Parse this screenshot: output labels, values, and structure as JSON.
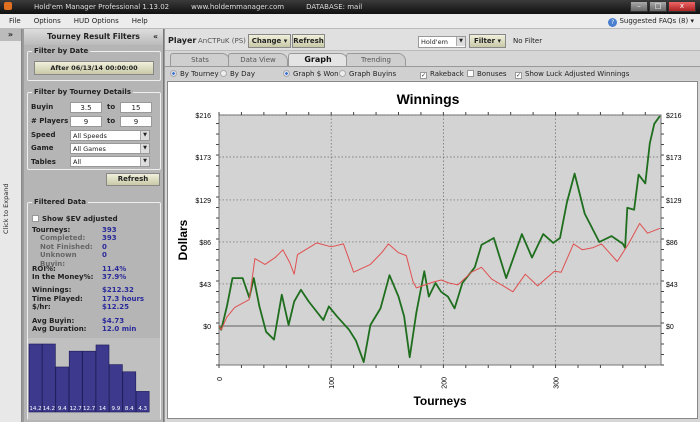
{
  "window": {
    "title": "Hold'em Manager Professional 1.13.02",
    "site": "www.holdemmanager.com",
    "database": "DATABASE: mail",
    "buttons": {
      "min": "–",
      "max": "□",
      "close": "x"
    }
  },
  "menu": {
    "items": [
      "File",
      "Options",
      "HUD Options",
      "Help"
    ],
    "faq": "Suggested FAQs (8)"
  },
  "strip": {
    "arrow": "»",
    "expand": "Click to Expand"
  },
  "filters": {
    "title": "Tourney Result Filters",
    "collapse": "«",
    "by_date": {
      "title": "Filter by Date",
      "button": "After 06/13/14 00:00:00"
    },
    "details": {
      "title": "Filter by Tourney Details",
      "buyin_label": "Buyin",
      "buyin_from": "3.5",
      "buyin_to": "15",
      "to": "to",
      "players_label": "# Players",
      "players_from": "9",
      "players_to": "9",
      "speed_label": "Speed",
      "speed": "All Speeds",
      "game_label": "Game",
      "game": "All Games",
      "tables_label": "Tables",
      "tables": "All"
    },
    "refresh": "Refresh",
    "filtered": {
      "title": "Filtered Data",
      "ev_label": "Show $EV adjusted",
      "ev_checked": false,
      "stats": [
        {
          "label": "Tourneys:",
          "value": "393",
          "sub": false
        },
        {
          "label": "Completed:",
          "value": "393",
          "sub": true
        },
        {
          "label": "Not Finished:",
          "value": "0",
          "sub": true
        },
        {
          "label": "Unknown Buyin:",
          "value": "0",
          "sub": true
        },
        {
          "label": "ROI%:",
          "value": "11.4%",
          "sub": false
        },
        {
          "label": "In the Money%:",
          "value": "37.9%",
          "sub": false
        },
        {
          "label": "Winnings:",
          "value": "$212.32",
          "sub": false
        },
        {
          "label": "Time Played:",
          "value": "17.3 hours",
          "sub": false
        },
        {
          "label": "$/hr:",
          "value": "$12.25",
          "sub": false
        },
        {
          "label": "Avg Buyin:",
          "value": "$4.73",
          "sub": false
        },
        {
          "label": "Avg Duration:",
          "value": "12.0 min",
          "sub": false
        }
      ],
      "histogram": [
        14.2,
        14.2,
        9.4,
        12.7,
        12.7,
        14.0,
        9.9,
        8.4,
        4.3
      ],
      "histogram_color": "#3d3a8e"
    }
  },
  "toolbar": {
    "player_label": "Player",
    "player": "AnCTPuK (PS)",
    "change": "Change",
    "refresh": "Refresh",
    "game": "Hold'em",
    "filter": "Filter",
    "filter_status": "No Filter"
  },
  "tabs": [
    {
      "label": "Stats",
      "active": false
    },
    {
      "label": "Data View",
      "active": false
    },
    {
      "label": "Graph",
      "active": true
    },
    {
      "label": "Trending",
      "active": false
    }
  ],
  "options": {
    "by_tourney": "By Tourney",
    "by_day": "By Day",
    "graph_won": "Graph $ Won",
    "graph_buyins": "Graph Buyins",
    "rakeback": "Rakeback",
    "bonuses": "Bonuses",
    "luck": "Show Luck Adjusted Winnings",
    "rakeback_checked": true,
    "bonuses_checked": false,
    "luck_checked": true,
    "check": "✓"
  },
  "chart_data": {
    "type": "line",
    "title": "Winnings",
    "xlabel": "Tourneys",
    "ylabel": "Dollars",
    "xlim": [
      0,
      394
    ],
    "ylim": [
      -40,
      216
    ],
    "grid": true,
    "xticks": [
      "0",
      "100",
      "200",
      "300"
    ],
    "yticks": [
      "$0",
      "$43",
      "$86",
      "$129",
      "$173",
      "$216"
    ],
    "series": [
      {
        "color": "#1e6e1e",
        "points": [
          [
            0,
            0
          ],
          [
            2,
            -4
          ],
          [
            7,
            20
          ],
          [
            12,
            49
          ],
          [
            21,
            49
          ],
          [
            27,
            29
          ],
          [
            31,
            49
          ],
          [
            36,
            20
          ],
          [
            42,
            -6
          ],
          [
            49,
            -14
          ],
          [
            56,
            32
          ],
          [
            62,
            1
          ],
          [
            67,
            25
          ],
          [
            73,
            37
          ],
          [
            80,
            25
          ],
          [
            93,
            6
          ],
          [
            98,
            20
          ],
          [
            105,
            10
          ],
          [
            116,
            -4
          ],
          [
            122,
            -15
          ],
          [
            129,
            -37
          ],
          [
            135,
            1
          ],
          [
            144,
            18
          ],
          [
            152,
            52
          ],
          [
            160,
            30
          ],
          [
            165,
            10
          ],
          [
            170,
            -32
          ],
          [
            176,
            14
          ],
          [
            183,
            56
          ],
          [
            187,
            30
          ],
          [
            193,
            44
          ],
          [
            198,
            35
          ],
          [
            204,
            30
          ],
          [
            210,
            18
          ],
          [
            217,
            44
          ],
          [
            228,
            60
          ],
          [
            234,
            83
          ],
          [
            245,
            90
          ],
          [
            256,
            49
          ],
          [
            270,
            94
          ],
          [
            279,
            70
          ],
          [
            289,
            94
          ],
          [
            298,
            85
          ],
          [
            304,
            90
          ],
          [
            310,
            126
          ],
          [
            317,
            156
          ],
          [
            326,
            115
          ],
          [
            339,
            86
          ],
          [
            350,
            92
          ],
          [
            360,
            84
          ],
          [
            362,
            80
          ],
          [
            364,
            121
          ],
          [
            370,
            119
          ],
          [
            374,
            155
          ],
          [
            380,
            146
          ],
          [
            384,
            187
          ],
          [
            388,
            207
          ],
          [
            393,
            215
          ]
        ]
      },
      {
        "color": "#e05050",
        "points": [
          [
            0,
            0
          ],
          [
            2,
            -4
          ],
          [
            7,
            9
          ],
          [
            14,
            19
          ],
          [
            27,
            27
          ],
          [
            32,
            69
          ],
          [
            41,
            63
          ],
          [
            50,
            70
          ],
          [
            57,
            78
          ],
          [
            63,
            65
          ],
          [
            67,
            53
          ],
          [
            70,
            73
          ],
          [
            80,
            80
          ],
          [
            87,
            85
          ],
          [
            100,
            81
          ],
          [
            111,
            84
          ],
          [
            120,
            55
          ],
          [
            135,
            63
          ],
          [
            145,
            75
          ],
          [
            151,
            84
          ],
          [
            160,
            75
          ],
          [
            167,
            72
          ],
          [
            173,
            45
          ],
          [
            176,
            39
          ],
          [
            191,
            45
          ],
          [
            198,
            47
          ],
          [
            205,
            44
          ],
          [
            213,
            42
          ],
          [
            225,
            55
          ],
          [
            234,
            60
          ],
          [
            243,
            48
          ],
          [
            252,
            42
          ],
          [
            262,
            35
          ],
          [
            273,
            53
          ],
          [
            284,
            41
          ],
          [
            299,
            56
          ],
          [
            305,
            55
          ],
          [
            316,
            84
          ],
          [
            324,
            78
          ],
          [
            333,
            80
          ],
          [
            341,
            84
          ],
          [
            355,
            66
          ],
          [
            365,
            84
          ],
          [
            375,
            105
          ],
          [
            382,
            95
          ],
          [
            393,
            100
          ]
        ]
      }
    ]
  }
}
